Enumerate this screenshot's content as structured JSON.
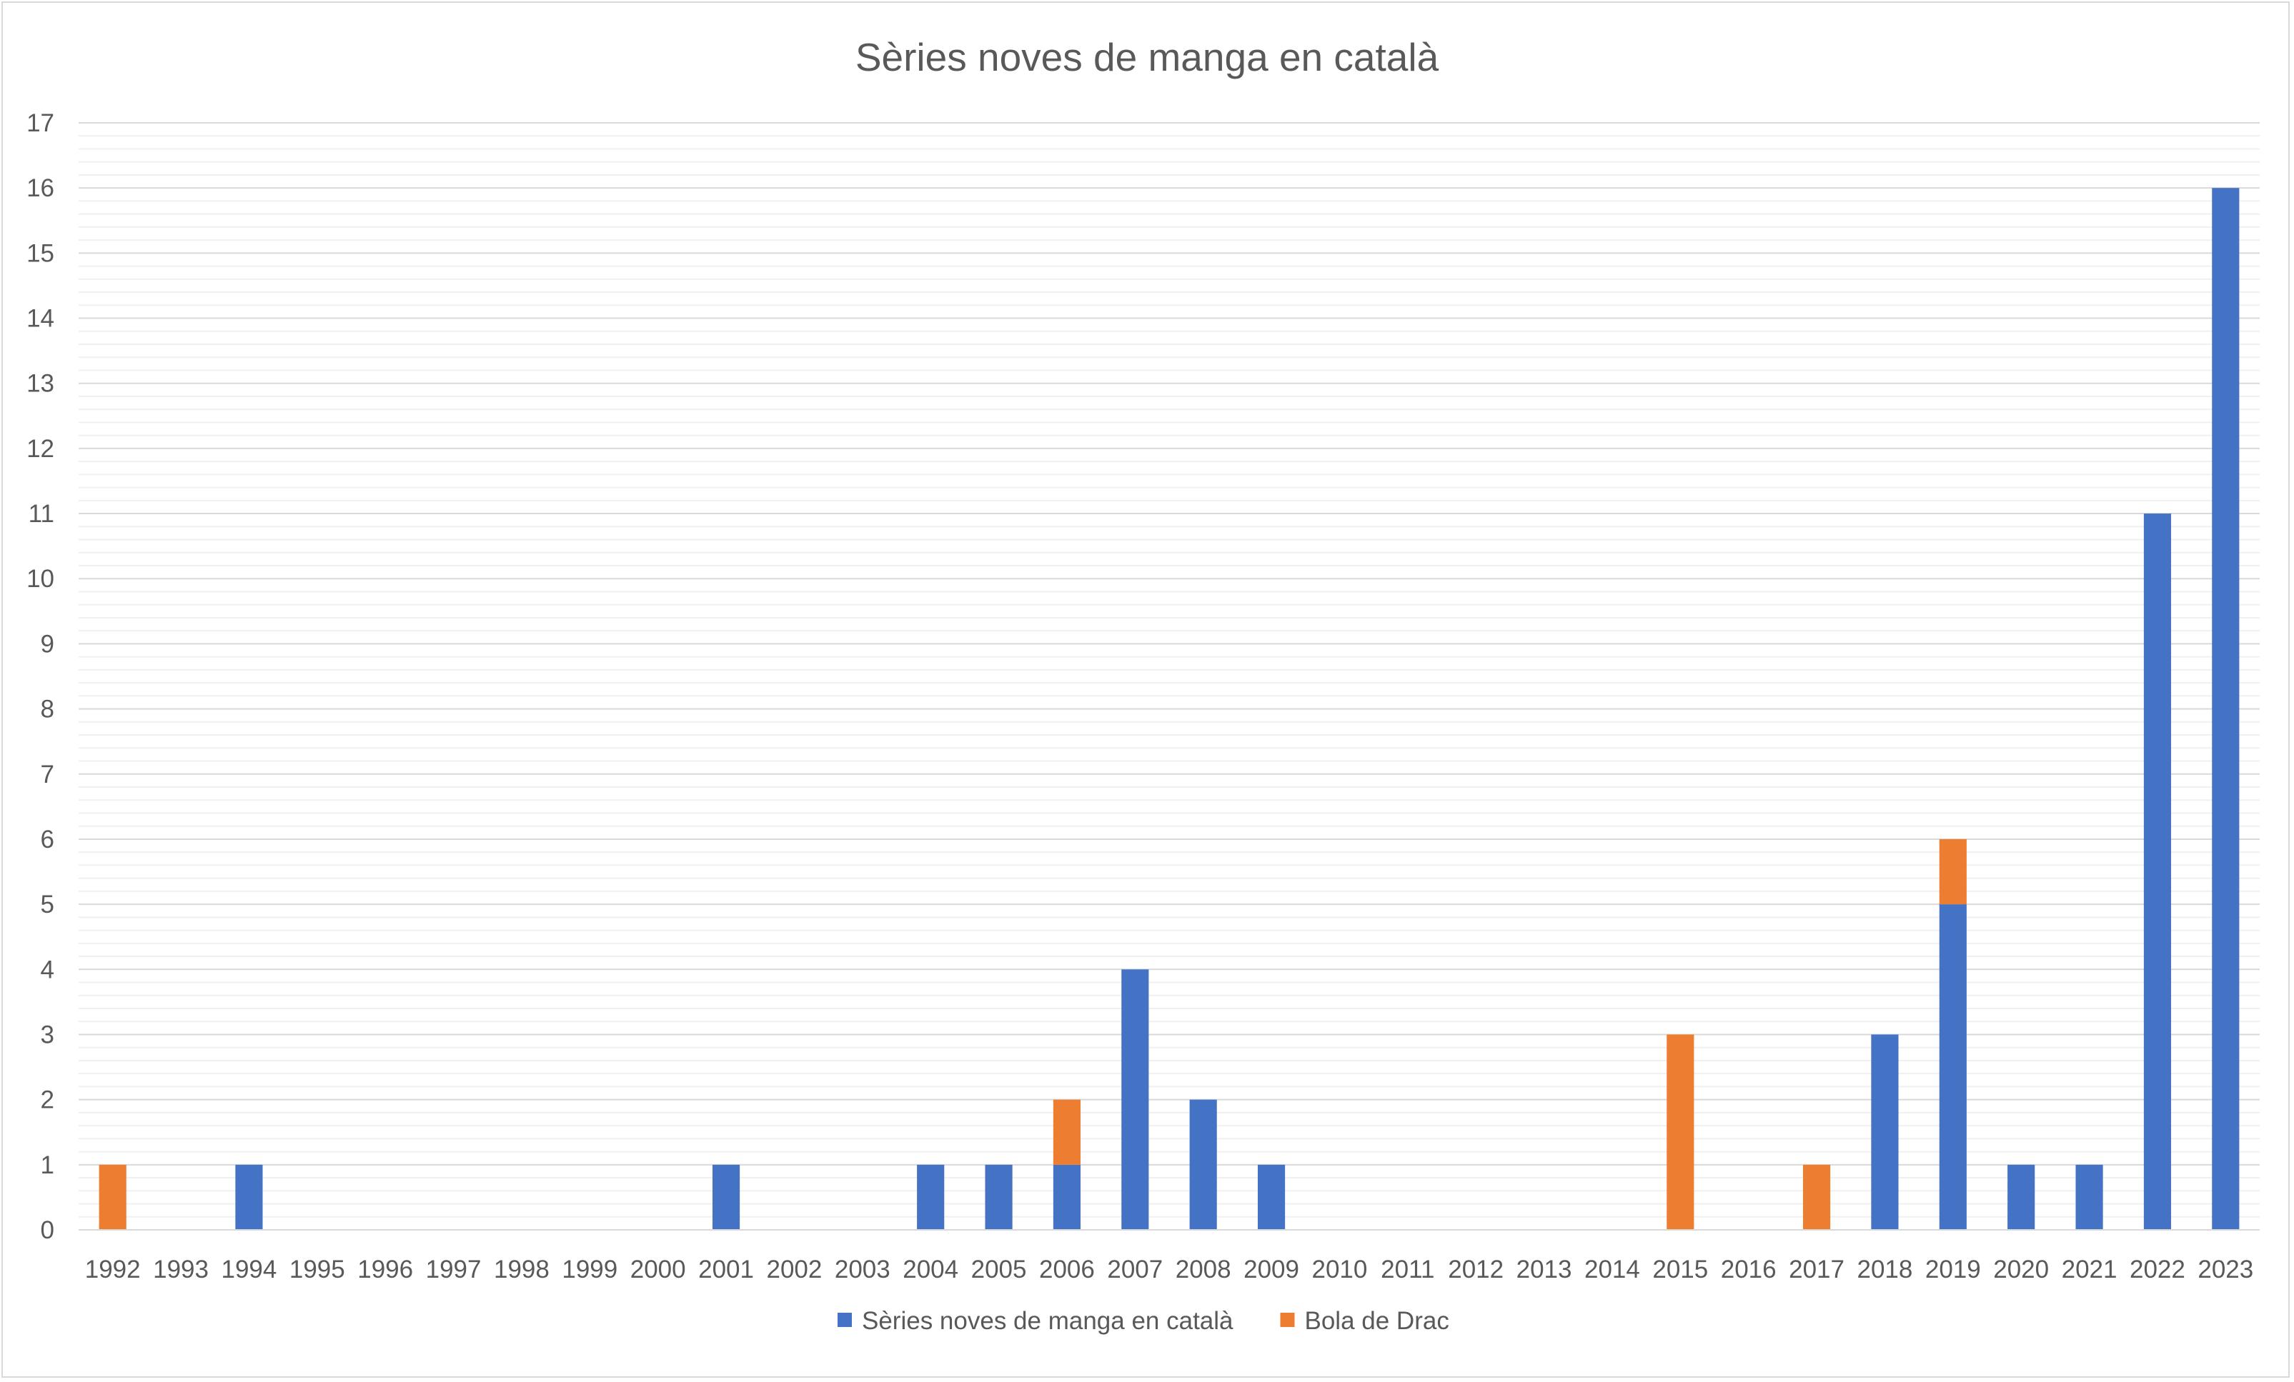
{
  "chart_data": {
    "type": "bar",
    "stacked": true,
    "title": "Sèries noves de manga en català",
    "xlabel": "",
    "ylabel": "",
    "categories": [
      "1992",
      "1993",
      "1994",
      "1995",
      "1996",
      "1997",
      "1998",
      "1999",
      "2000",
      "2001",
      "2002",
      "2003",
      "2004",
      "2005",
      "2006",
      "2007",
      "2008",
      "2009",
      "2010",
      "2011",
      "2012",
      "2013",
      "2014",
      "2015",
      "2016",
      "2017",
      "2018",
      "2019",
      "2020",
      "2021",
      "2022",
      "2023"
    ],
    "series": [
      {
        "name": "Sèries noves de manga en català",
        "color": "#4472c4",
        "values": [
          0,
          0,
          1,
          0,
          0,
          0,
          0,
          0,
          0,
          1,
          0,
          0,
          1,
          1,
          1,
          4,
          2,
          1,
          0,
          0,
          0,
          0,
          0,
          0,
          0,
          0,
          3,
          5,
          1,
          1,
          11,
          16
        ]
      },
      {
        "name": "Bola de Drac",
        "color": "#ed7d31",
        "values": [
          1,
          0,
          0,
          0,
          0,
          0,
          0,
          0,
          0,
          0,
          0,
          0,
          0,
          0,
          1,
          0,
          0,
          0,
          0,
          0,
          0,
          0,
          0,
          3,
          0,
          1,
          0,
          1,
          0,
          0,
          0,
          0
        ]
      }
    ],
    "ylim": [
      0,
      17
    ],
    "yticks": [
      0,
      1,
      2,
      3,
      4,
      5,
      6,
      7,
      8,
      9,
      10,
      11,
      12,
      13,
      14,
      15,
      16,
      17
    ],
    "minor_gridlines_per_unit": 5,
    "grid": true,
    "legend_position": "bottom"
  }
}
